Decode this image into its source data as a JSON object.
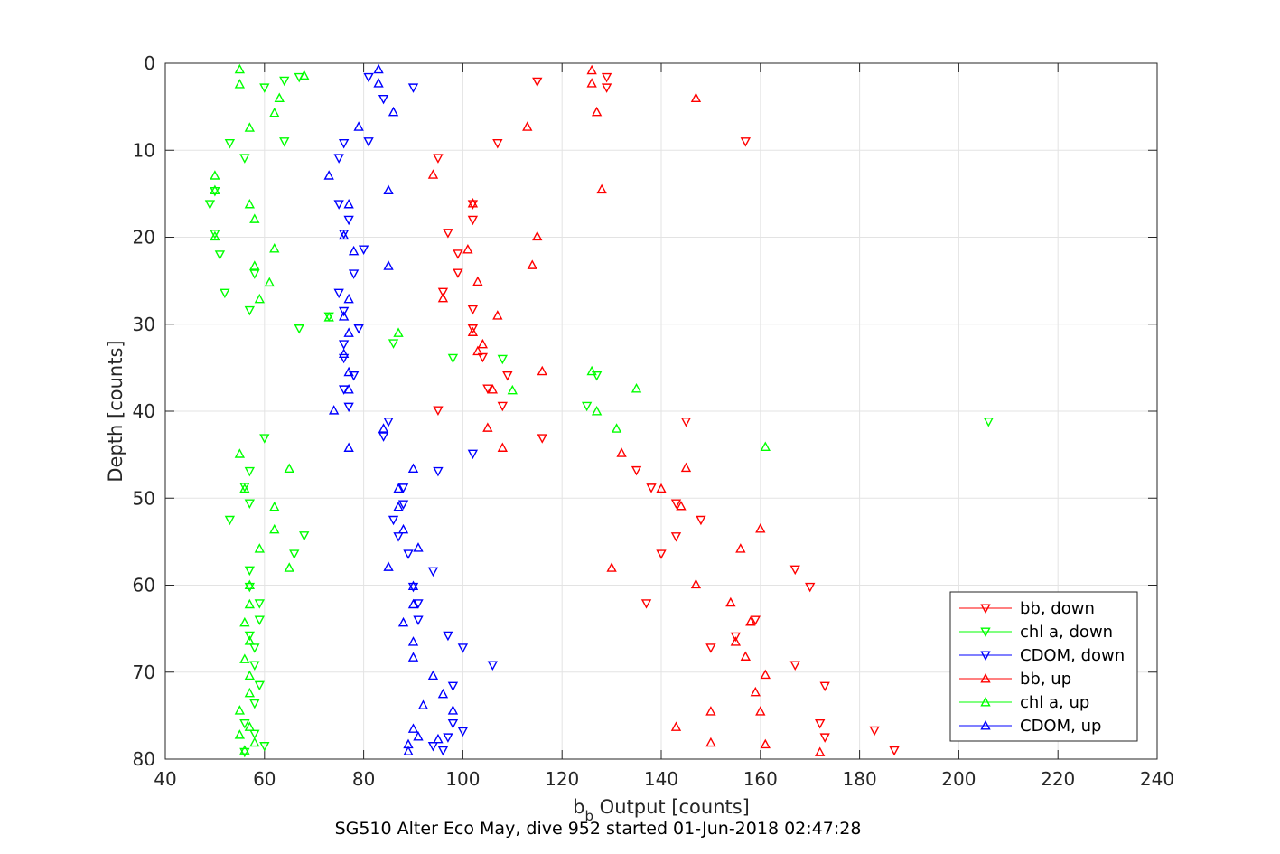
{
  "chart_data": {
    "type": "scatter",
    "title": "SG510 Alter Eco May, dive 952 started 01-Jun-2018 02:47:28",
    "xlabel_main": "b",
    "xlabel_sub": "b",
    "xlabel_rest": " Output [counts]",
    "ylabel": "Depth [counts]",
    "xlim": [
      40,
      240
    ],
    "ylim": [
      0,
      80
    ],
    "y_reversed": true,
    "grid": true,
    "legend_position": "bottom-right",
    "x_ticks": [
      "40",
      "60",
      "80",
      "100",
      "120",
      "140",
      "160",
      "180",
      "200",
      "220",
      "240"
    ],
    "y_ticks": [
      "0",
      "10",
      "20",
      "30",
      "40",
      "50",
      "60",
      "70",
      "80"
    ],
    "series": [
      {
        "name": "bb, down",
        "color": "#ff0000",
        "marker": "triangle-down",
        "points": [
          [
            129,
            1.6
          ],
          [
            115,
            2.1
          ],
          [
            129,
            2.8
          ],
          [
            157,
            9
          ],
          [
            107,
            9.2
          ],
          [
            95,
            10.9
          ],
          [
            102,
            16.2
          ],
          [
            102,
            18
          ],
          [
            97,
            19.5
          ],
          [
            99,
            21.9
          ],
          [
            99,
            24.1
          ],
          [
            96,
            26.3
          ],
          [
            102,
            28.3
          ],
          [
            102,
            30.5
          ],
          [
            104,
            33.8
          ],
          [
            109,
            35.9
          ],
          [
            105,
            37.4
          ],
          [
            108,
            39.4
          ],
          [
            95,
            39.9
          ],
          [
            116,
            43.1
          ],
          [
            145,
            41.2
          ],
          [
            135,
            46.8
          ],
          [
            138,
            48.8
          ],
          [
            143,
            50.6
          ],
          [
            148,
            52.5
          ],
          [
            143,
            54.4
          ],
          [
            140,
            56.4
          ],
          [
            167,
            58.2
          ],
          [
            170,
            60.2
          ],
          [
            137,
            62.1
          ],
          [
            159,
            64
          ],
          [
            155,
            65.9
          ],
          [
            150,
            67.2
          ],
          [
            167,
            69.2
          ],
          [
            173,
            71.6
          ],
          [
            172,
            75.9
          ],
          [
            173,
            77.5
          ],
          [
            183,
            76.7
          ],
          [
            187,
            79
          ]
        ]
      },
      {
        "name": "chl a, down",
        "color": "#00ff00",
        "marker": "triangle-down",
        "points": [
          [
            67,
            1.6
          ],
          [
            64,
            2
          ],
          [
            60,
            2.8
          ],
          [
            53,
            9.2
          ],
          [
            64,
            9
          ],
          [
            56,
            10.9
          ],
          [
            50,
            14.7
          ],
          [
            49,
            16.2
          ],
          [
            50,
            19.6
          ],
          [
            51,
            22
          ],
          [
            58,
            24.2
          ],
          [
            52,
            26.4
          ],
          [
            57,
            28.4
          ],
          [
            67,
            30.5
          ],
          [
            73,
            29.1
          ],
          [
            86,
            32.2
          ],
          [
            98,
            33.9
          ],
          [
            108,
            34
          ],
          [
            127,
            35.9
          ],
          [
            125,
            39.4
          ],
          [
            206,
            41.2
          ],
          [
            60,
            43.1
          ],
          [
            57,
            46.9
          ],
          [
            56,
            48.7
          ],
          [
            57,
            50.6
          ],
          [
            53,
            52.5
          ],
          [
            68,
            54.3
          ],
          [
            66,
            56.4
          ],
          [
            57,
            58.3
          ],
          [
            57,
            60.2
          ],
          [
            59,
            62.1
          ],
          [
            59,
            64
          ],
          [
            57,
            65.8
          ],
          [
            58,
            67.2
          ],
          [
            58,
            69.2
          ],
          [
            59,
            71.5
          ],
          [
            58,
            73.6
          ],
          [
            56,
            75.9
          ],
          [
            58,
            77.1
          ],
          [
            60,
            78.5
          ],
          [
            56,
            79.2
          ]
        ]
      },
      {
        "name": "CDOM, down",
        "color": "#0000ff",
        "marker": "triangle-down",
        "points": [
          [
            81,
            1.6
          ],
          [
            90,
            2.8
          ],
          [
            84,
            4.1
          ],
          [
            81,
            9
          ],
          [
            76,
            9.2
          ],
          [
            75,
            10.9
          ],
          [
            75,
            16.2
          ],
          [
            77,
            18
          ],
          [
            76,
            19.6
          ],
          [
            80,
            21.4
          ],
          [
            78,
            24.2
          ],
          [
            75,
            26.4
          ],
          [
            76,
            28.5
          ],
          [
            79,
            30.5
          ],
          [
            76,
            32.3
          ],
          [
            76,
            33.9
          ],
          [
            78,
            35.9
          ],
          [
            76,
            37.5
          ],
          [
            77,
            39.5
          ],
          [
            85,
            41.2
          ],
          [
            84,
            42.9
          ],
          [
            102,
            44.9
          ],
          [
            95,
            46.9
          ],
          [
            88,
            48.8
          ],
          [
            88,
            50.7
          ],
          [
            86,
            52.5
          ],
          [
            87,
            54.4
          ],
          [
            89,
            56.4
          ],
          [
            94,
            58.4
          ],
          [
            90,
            60.2
          ],
          [
            91,
            62.1
          ],
          [
            91,
            64
          ],
          [
            97,
            65.8
          ],
          [
            100,
            67.2
          ],
          [
            106,
            69.2
          ],
          [
            98,
            71.6
          ],
          [
            98,
            75.9
          ],
          [
            100,
            76.8
          ],
          [
            97,
            77.5
          ],
          [
            94,
            78.5
          ],
          [
            96,
            79
          ]
        ]
      },
      {
        "name": "bb, up",
        "color": "#ff0000",
        "marker": "triangle-up",
        "points": [
          [
            126,
            0.8
          ],
          [
            126,
            2.3
          ],
          [
            147,
            4
          ],
          [
            127,
            5.6
          ],
          [
            113,
            7.3
          ],
          [
            94,
            12.8
          ],
          [
            128,
            14.5
          ],
          [
            102,
            16.1
          ],
          [
            115,
            19.9
          ],
          [
            101,
            21.4
          ],
          [
            114,
            23.2
          ],
          [
            103,
            25.1
          ],
          [
            96,
            27
          ],
          [
            107,
            29
          ],
          [
            102,
            30.9
          ],
          [
            103,
            33.1
          ],
          [
            104,
            32.3
          ],
          [
            116,
            35.4
          ],
          [
            106,
            37.5
          ],
          [
            105,
            41.9
          ],
          [
            108,
            44.2
          ],
          [
            132,
            44.8
          ],
          [
            145,
            46.5
          ],
          [
            140,
            48.9
          ],
          [
            144,
            50.9
          ],
          [
            160,
            53.5
          ],
          [
            156,
            55.8
          ],
          [
            130,
            58
          ],
          [
            147,
            59.9
          ],
          [
            154,
            62
          ],
          [
            158,
            64.2
          ],
          [
            155,
            66.5
          ],
          [
            157,
            68.2
          ],
          [
            161,
            70.3
          ],
          [
            159,
            72.3
          ],
          [
            160,
            74.5
          ],
          [
            150,
            74.5
          ],
          [
            143,
            76.3
          ],
          [
            150,
            78.1
          ],
          [
            161,
            78.3
          ],
          [
            172,
            79.2
          ]
        ]
      },
      {
        "name": "chl a, up",
        "color": "#00ff00",
        "marker": "triangle-up",
        "points": [
          [
            55,
            0.7
          ],
          [
            68,
            1.4
          ],
          [
            55,
            2.4
          ],
          [
            63,
            4
          ],
          [
            62,
            5.7
          ],
          [
            57,
            7.4
          ],
          [
            50,
            12.9
          ],
          [
            50,
            14.6
          ],
          [
            57,
            16.2
          ],
          [
            58,
            17.9
          ],
          [
            50,
            19.9
          ],
          [
            62,
            21.3
          ],
          [
            58,
            23.3
          ],
          [
            61,
            25.2
          ],
          [
            59,
            27.1
          ],
          [
            73,
            29.2
          ],
          [
            87,
            31
          ],
          [
            110,
            37.6
          ],
          [
            126,
            35.4
          ],
          [
            135,
            37.4
          ],
          [
            127,
            40
          ],
          [
            131,
            42
          ],
          [
            161,
            44.1
          ],
          [
            55,
            44.9
          ],
          [
            65,
            46.6
          ],
          [
            56,
            48.9
          ],
          [
            62,
            51
          ],
          [
            62,
            53.6
          ],
          [
            59,
            55.8
          ],
          [
            65,
            58
          ],
          [
            57,
            60
          ],
          [
            57,
            62.2
          ],
          [
            56,
            64.3
          ],
          [
            57,
            66.4
          ],
          [
            56,
            68.5
          ],
          [
            57,
            70.4
          ],
          [
            57,
            72.4
          ],
          [
            55,
            74.4
          ],
          [
            57,
            76.3
          ],
          [
            55,
            77.2
          ],
          [
            58,
            78.1
          ],
          [
            56,
            79
          ]
        ]
      },
      {
        "name": "CDOM, up",
        "color": "#0000ff",
        "marker": "triangle-up",
        "points": [
          [
            83,
            0.7
          ],
          [
            83,
            2.3
          ],
          [
            86,
            5.6
          ],
          [
            79,
            7.3
          ],
          [
            73,
            12.9
          ],
          [
            85,
            14.6
          ],
          [
            77,
            16.2
          ],
          [
            76,
            19.8
          ],
          [
            78,
            21.6
          ],
          [
            85,
            23.3
          ],
          [
            77,
            27.1
          ],
          [
            76,
            29.1
          ],
          [
            77,
            31
          ],
          [
            76,
            33.4
          ],
          [
            77,
            35.5
          ],
          [
            77,
            37.5
          ],
          [
            74,
            39.9
          ],
          [
            84,
            42
          ],
          [
            77,
            44.2
          ],
          [
            90,
            46.6
          ],
          [
            87,
            48.9
          ],
          [
            87,
            51
          ],
          [
            88,
            53.6
          ],
          [
            91,
            55.7
          ],
          [
            85,
            57.9
          ],
          [
            90,
            60.1
          ],
          [
            90,
            62.2
          ],
          [
            88,
            64.3
          ],
          [
            90,
            66.5
          ],
          [
            90,
            68.3
          ],
          [
            94,
            70.4
          ],
          [
            96,
            72.5
          ],
          [
            92,
            73.8
          ],
          [
            98,
            74.4
          ],
          [
            90,
            76.5
          ],
          [
            91,
            77.4
          ],
          [
            89,
            78.3
          ],
          [
            95,
            77.7
          ],
          [
            89,
            79.1
          ]
        ]
      }
    ]
  }
}
